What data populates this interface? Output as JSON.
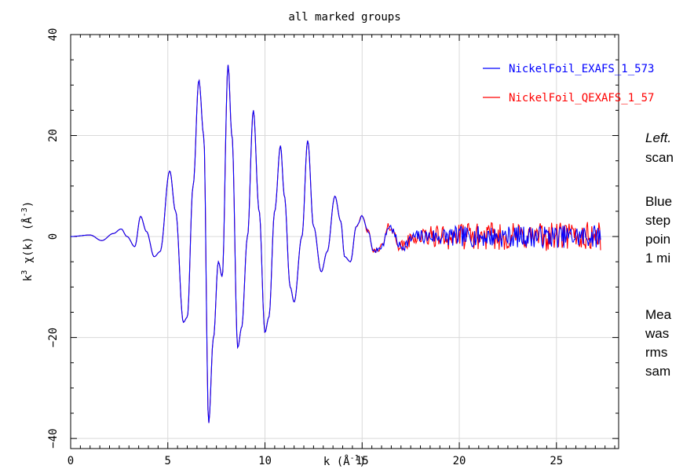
{
  "chart_data": {
    "type": "line",
    "title": "all marked groups",
    "xlabel_base": "k (Å",
    "xlabel_exp": "-1",
    "xlabel_close": ")",
    "ylabel_base": "k",
    "ylabel_sup1": "3",
    "ylabel_mid": " χ(k) (Å",
    "ylabel_sup2": "-3",
    "ylabel_close": ")",
    "xlim": [
      0,
      28.2
    ],
    "ylim": [
      -42,
      40
    ],
    "xticks": [
      0,
      5,
      10,
      15,
      20,
      25
    ],
    "yticks": [
      -40,
      -20,
      0,
      20,
      40
    ],
    "grid": true,
    "legend_position": "top-right",
    "series": [
      {
        "name": "NickelFoil_EXAFS_1_573",
        "color": "#0000ff",
        "seed": 7,
        "noise": 2.3,
        "x_end": 27.3,
        "points": [
          [
            0,
            0
          ],
          [
            1,
            0.3
          ],
          [
            1.6,
            -0.8
          ],
          [
            2.2,
            0.6
          ],
          [
            2.6,
            1.5
          ],
          [
            2.9,
            0
          ],
          [
            3.3,
            -2
          ],
          [
            3.6,
            4
          ],
          [
            3.9,
            1
          ],
          [
            4.3,
            -4
          ],
          [
            4.6,
            -3
          ],
          [
            5.1,
            13
          ],
          [
            5.4,
            5
          ],
          [
            5.8,
            -17
          ],
          [
            6.0,
            -16
          ],
          [
            6.3,
            10
          ],
          [
            6.6,
            31
          ],
          [
            6.85,
            20
          ],
          [
            7.1,
            -37
          ],
          [
            7.35,
            -20
          ],
          [
            7.6,
            -5
          ],
          [
            7.8,
            -8
          ],
          [
            8.1,
            34
          ],
          [
            8.3,
            20
          ],
          [
            8.6,
            -22
          ],
          [
            8.8,
            -18
          ],
          [
            9.1,
            0
          ],
          [
            9.4,
            25
          ],
          [
            9.7,
            5
          ],
          [
            10.0,
            -19
          ],
          [
            10.2,
            -16
          ],
          [
            10.5,
            5
          ],
          [
            10.8,
            18
          ],
          [
            11.0,
            8
          ],
          [
            11.3,
            -10
          ],
          [
            11.5,
            -13
          ],
          [
            11.9,
            0
          ],
          [
            12.2,
            19
          ],
          [
            12.5,
            2
          ],
          [
            12.9,
            -7
          ],
          [
            13.2,
            -3
          ],
          [
            13.6,
            8
          ],
          [
            13.9,
            3
          ],
          [
            14.1,
            -4
          ],
          [
            14.4,
            -5
          ],
          [
            14.7,
            2
          ],
          [
            15.0,
            4
          ],
          [
            15.3,
            1
          ],
          [
            15.6,
            -3
          ],
          [
            16.0,
            -2
          ],
          [
            16.4,
            2
          ],
          [
            17.0,
            -2
          ],
          [
            17.8,
            0
          ],
          [
            28,
            0
          ]
        ]
      },
      {
        "name": "NickelFoil_QEXAFS_1_57",
        "color": "#ff0000",
        "seed": 42,
        "noise": 3.0,
        "x_end": 27.3,
        "points": [
          [
            0,
            0
          ],
          [
            1,
            0.3
          ],
          [
            1.6,
            -0.8
          ],
          [
            2.2,
            0.6
          ],
          [
            2.6,
            1.5
          ],
          [
            2.9,
            0
          ],
          [
            3.3,
            -2
          ],
          [
            3.6,
            4
          ],
          [
            3.9,
            1
          ],
          [
            4.3,
            -4
          ],
          [
            4.6,
            -3
          ],
          [
            5.1,
            13
          ],
          [
            5.4,
            5
          ],
          [
            5.8,
            -17
          ],
          [
            6.0,
            -16
          ],
          [
            6.3,
            10
          ],
          [
            6.6,
            31
          ],
          [
            6.85,
            20
          ],
          [
            7.1,
            -37
          ],
          [
            7.35,
            -20
          ],
          [
            7.6,
            -5
          ],
          [
            7.8,
            -8
          ],
          [
            8.1,
            34
          ],
          [
            8.3,
            20
          ],
          [
            8.6,
            -22
          ],
          [
            8.8,
            -18
          ],
          [
            9.1,
            0
          ],
          [
            9.4,
            25
          ],
          [
            9.7,
            5
          ],
          [
            10.0,
            -19
          ],
          [
            10.2,
            -16
          ],
          [
            10.5,
            5
          ],
          [
            10.8,
            18
          ],
          [
            11.0,
            8
          ],
          [
            11.3,
            -10
          ],
          [
            11.5,
            -13
          ],
          [
            11.9,
            0
          ],
          [
            12.2,
            19
          ],
          [
            12.5,
            2
          ],
          [
            12.9,
            -7
          ],
          [
            13.2,
            -3
          ],
          [
            13.6,
            8
          ],
          [
            13.9,
            3
          ],
          [
            14.1,
            -4
          ],
          [
            14.4,
            -5
          ],
          [
            14.7,
            2
          ],
          [
            15.0,
            4
          ],
          [
            15.3,
            1
          ],
          [
            15.6,
            -3
          ],
          [
            16.0,
            -2
          ],
          [
            16.4,
            2
          ],
          [
            17.0,
            -2
          ],
          [
            17.8,
            0
          ],
          [
            28,
            0
          ]
        ]
      }
    ]
  },
  "side_text": {
    "line1": "Left.",
    "line2": "scan",
    "line3": "Blue",
    "line4": "step",
    "line5": "poin",
    "line6": "1 mi",
    "line7": "Mea",
    "line8": "was",
    "line9": "rms",
    "line10": "sam"
  }
}
